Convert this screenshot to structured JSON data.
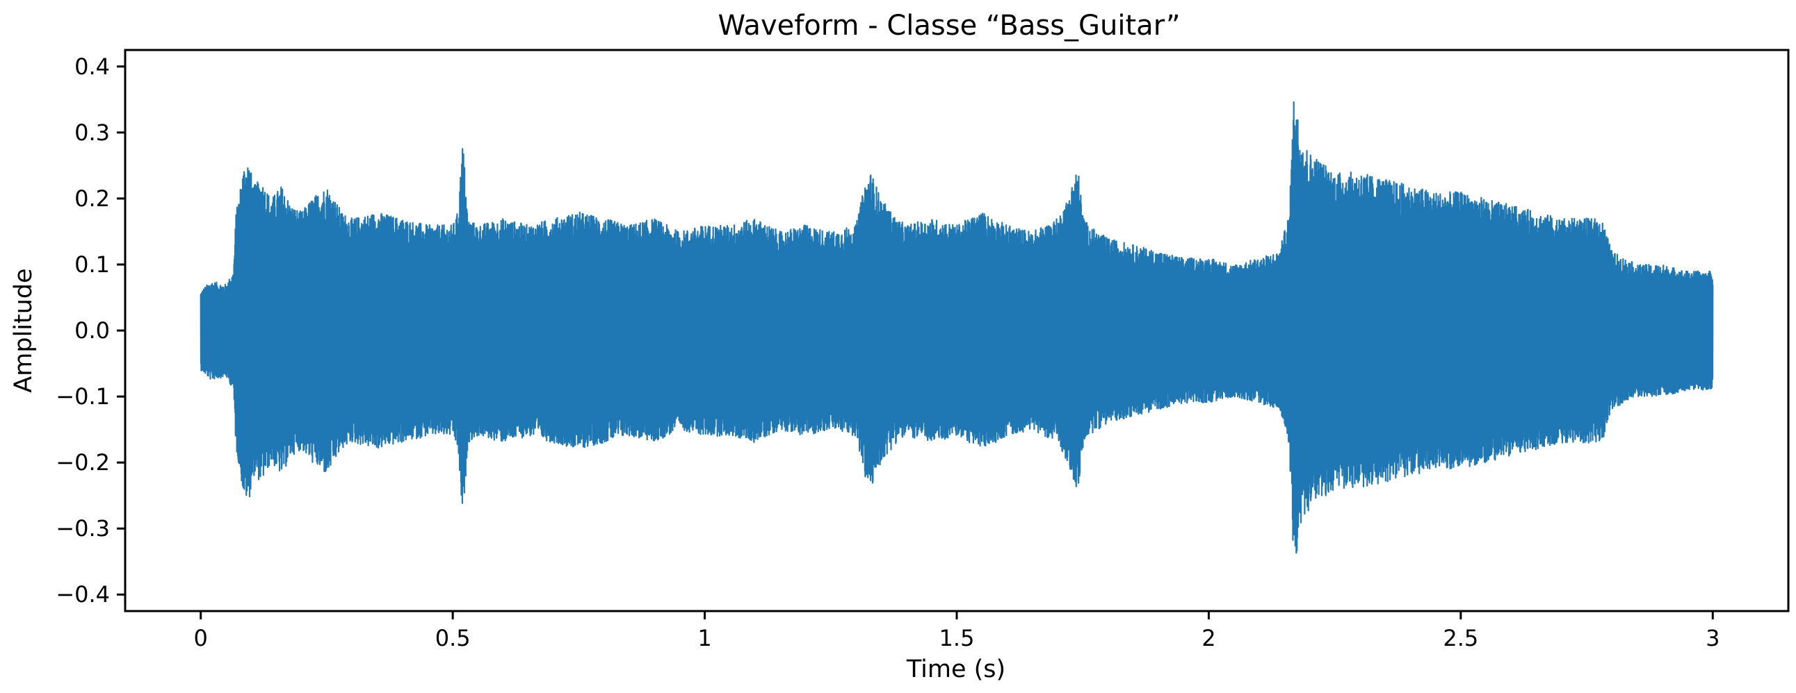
{
  "chart_data": {
    "type": "line",
    "title": "Waveform - Classe “Bass_Guitar”",
    "xlabel": "Time (s)",
    "ylabel": "Amplitude",
    "xlim": [
      -0.15,
      3.15
    ],
    "ylim": [
      -0.425,
      0.425
    ],
    "xticks": [
      0,
      0.5,
      1,
      1.5,
      2,
      2.5,
      3
    ],
    "xtick_labels": [
      "0",
      "0.5",
      "1",
      "1.5",
      "2",
      "2.5",
      "3"
    ],
    "yticks": [
      0.4,
      0.3,
      0.2,
      0.1,
      0.0,
      -0.1,
      -0.2,
      -0.3,
      -0.4
    ],
    "ytick_labels": [
      "0.4",
      "0.3",
      "0.2",
      "0.1",
      "0.0",
      "−0.1",
      "−0.2",
      "−0.3",
      "−0.4"
    ],
    "grid": false,
    "legend": "none",
    "series": [
      {
        "color": "#1f77b4",
        "description_of_signal": "",
        "envelope_upper": {
          "t": [
            0.0,
            0.02,
            0.05,
            0.065,
            0.07,
            0.075,
            0.085,
            0.095,
            0.105,
            0.12,
            0.14,
            0.16,
            0.18,
            0.2,
            0.22,
            0.25,
            0.28,
            0.3,
            0.35,
            0.4,
            0.45,
            0.5,
            0.51,
            0.52,
            0.53,
            0.55,
            0.6,
            0.65,
            0.7,
            0.75,
            0.8,
            0.85,
            0.9,
            0.95,
            1.0,
            1.05,
            1.1,
            1.15,
            1.2,
            1.25,
            1.3,
            1.32,
            1.33,
            1.35,
            1.38,
            1.4,
            1.45,
            1.5,
            1.55,
            1.6,
            1.65,
            1.7,
            1.72,
            1.74,
            1.75,
            1.76,
            1.8,
            1.85,
            1.9,
            1.95,
            2.0,
            2.05,
            2.1,
            2.14,
            2.16,
            2.17,
            2.18,
            2.2,
            2.22,
            2.25,
            2.3,
            2.35,
            2.4,
            2.45,
            2.5,
            2.55,
            2.6,
            2.65,
            2.7,
            2.75,
            2.78,
            2.8,
            2.85,
            2.9,
            2.95,
            3.0
          ],
          "amplitude": [
            0.06,
            0.075,
            0.07,
            0.09,
            0.18,
            0.2,
            0.25,
            0.26,
            0.22,
            0.23,
            0.2,
            0.22,
            0.19,
            0.18,
            0.2,
            0.22,
            0.18,
            0.17,
            0.18,
            0.17,
            0.16,
            0.16,
            0.18,
            0.29,
            0.17,
            0.16,
            0.17,
            0.16,
            0.17,
            0.18,
            0.17,
            0.16,
            0.17,
            0.15,
            0.16,
            0.16,
            0.17,
            0.15,
            0.16,
            0.15,
            0.16,
            0.23,
            0.24,
            0.2,
            0.17,
            0.16,
            0.17,
            0.16,
            0.18,
            0.16,
            0.15,
            0.17,
            0.2,
            0.25,
            0.18,
            0.16,
            0.14,
            0.13,
            0.12,
            0.11,
            0.11,
            0.1,
            0.11,
            0.12,
            0.18,
            0.38,
            0.3,
            0.27,
            0.26,
            0.24,
            0.24,
            0.23,
            0.22,
            0.21,
            0.21,
            0.2,
            0.19,
            0.18,
            0.17,
            0.17,
            0.17,
            0.12,
            0.1,
            0.1,
            0.09,
            0.09
          ]
        }
      }
    ]
  }
}
